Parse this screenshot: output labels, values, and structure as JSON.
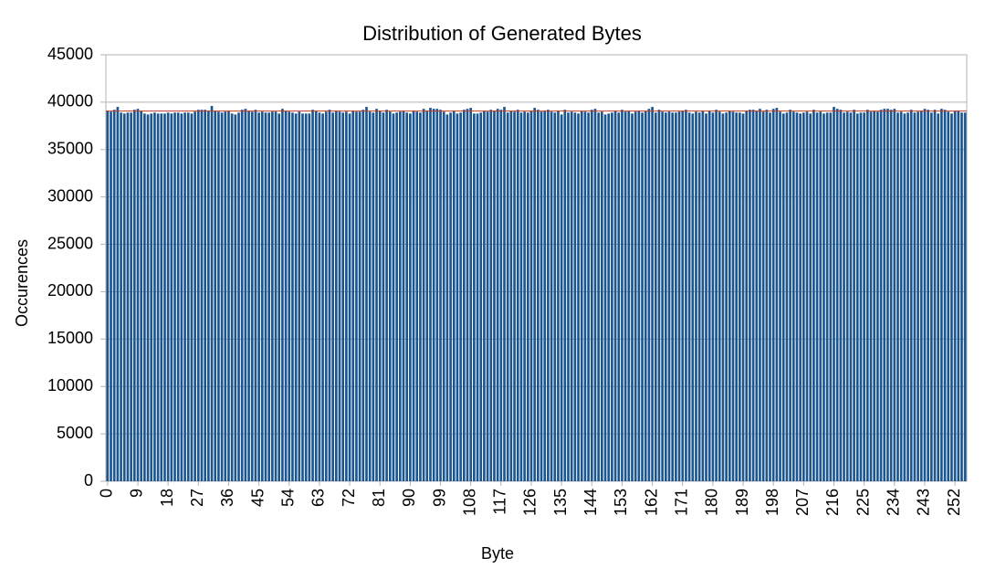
{
  "chart_data": {
    "type": "bar",
    "title": "Distribution of Generated Bytes",
    "x_label": "Byte",
    "y_label": "Occurences",
    "categories": [
      "0",
      null,
      null,
      null,
      null,
      null,
      null,
      null,
      null,
      "9",
      null,
      null,
      null,
      null,
      null,
      null,
      null,
      null,
      "18",
      null,
      null,
      null,
      null,
      null,
      null,
      null,
      null,
      "27",
      null,
      null,
      null,
      null,
      null,
      null,
      null,
      null,
      "36",
      null,
      null,
      null,
      null,
      null,
      null,
      null,
      null,
      "45",
      null,
      null,
      null,
      null,
      null,
      null,
      null,
      null,
      "54",
      null,
      null,
      null,
      null,
      null,
      null,
      null,
      null,
      "63",
      null,
      null,
      null,
      null,
      null,
      null,
      null,
      null,
      "72",
      null,
      null,
      null,
      null,
      null,
      null,
      null,
      null,
      "81",
      null,
      null,
      null,
      null,
      null,
      null,
      null,
      null,
      "90",
      null,
      null,
      null,
      null,
      null,
      null,
      null,
      null,
      "99",
      null,
      null,
      null,
      null,
      null,
      null,
      null,
      null,
      "108",
      null,
      null,
      null,
      null,
      null,
      null,
      null,
      null,
      "117",
      null,
      null,
      null,
      null,
      null,
      null,
      null,
      null,
      "126",
      null,
      null,
      null,
      null,
      null,
      null,
      null,
      null,
      "135",
      null,
      null,
      null,
      null,
      null,
      null,
      null,
      null,
      "144",
      null,
      null,
      null,
      null,
      null,
      null,
      null,
      null,
      "153",
      null,
      null,
      null,
      null,
      null,
      null,
      null,
      null,
      "162",
      null,
      null,
      null,
      null,
      null,
      null,
      null,
      null,
      "171",
      null,
      null,
      null,
      null,
      null,
      null,
      null,
      null,
      "180",
      null,
      null,
      null,
      null,
      null,
      null,
      null,
      null,
      "189",
      null,
      null,
      null,
      null,
      null,
      null,
      null,
      null,
      "198",
      null,
      null,
      null,
      null,
      null,
      null,
      null,
      null,
      "207",
      null,
      null,
      null,
      null,
      null,
      null,
      null,
      null,
      "216",
      null,
      null,
      null,
      null,
      null,
      null,
      null,
      null,
      "225",
      null,
      null,
      null,
      null,
      null,
      null,
      null,
      null,
      "234",
      null,
      null,
      null,
      null,
      null,
      null,
      null,
      null,
      "243",
      null,
      null,
      null,
      null,
      null,
      null,
      null,
      null,
      "252",
      null,
      null,
      null
    ],
    "values": [
      39100,
      39000,
      39200,
      39500,
      38900,
      38800,
      38900,
      38900,
      39200,
      39300,
      39100,
      38800,
      38700,
      38800,
      38900,
      38800,
      38800,
      38800,
      38900,
      38800,
      38900,
      38900,
      38800,
      38900,
      38900,
      38800,
      39000,
      39200,
      39200,
      39200,
      39100,
      39600,
      39100,
      39000,
      38900,
      39000,
      39100,
      38800,
      38700,
      38900,
      39200,
      39300,
      39100,
      39000,
      39200,
      38900,
      39000,
      38900,
      38900,
      39000,
      39000,
      38800,
      39300,
      39100,
      39000,
      38900,
      38800,
      39000,
      38800,
      38800,
      38800,
      39200,
      39100,
      38900,
      38800,
      39000,
      39200,
      38900,
      39100,
      39000,
      38900,
      39000,
      38800,
      39100,
      39000,
      39000,
      39200,
      39500,
      39000,
      38900,
      39300,
      39100,
      38900,
      39200,
      39000,
      38800,
      38900,
      39000,
      39100,
      38900,
      38800,
      39100,
      39000,
      38900,
      39300,
      39100,
      39400,
      39300,
      39300,
      39200,
      39000,
      38700,
      38900,
      39100,
      38800,
      38900,
      39200,
      39300,
      39400,
      38800,
      38800,
      38900,
      39100,
      39000,
      39200,
      39100,
      39300,
      39200,
      39500,
      38900,
      39100,
      39000,
      39200,
      38900,
      39000,
      38900,
      39100,
      39400,
      39200,
      39000,
      39100,
      39200,
      39000,
      38900,
      39100,
      38700,
      39200,
      38900,
      39000,
      38900,
      38800,
      39100,
      39000,
      38900,
      39200,
      39300,
      38900,
      39000,
      38700,
      38800,
      38900,
      39100,
      38900,
      39200,
      39000,
      39100,
      38800,
      39000,
      39100,
      38900,
      39100,
      39300,
      39500,
      38900,
      39200,
      39000,
      38900,
      39000,
      38900,
      38900,
      39000,
      39100,
      39200,
      38900,
      38800,
      39000,
      38900,
      39100,
      38800,
      39100,
      38900,
      39200,
      39000,
      38800,
      38900,
      39100,
      39000,
      38900,
      38900,
      38800,
      39100,
      39200,
      39200,
      39100,
      39300,
      39000,
      39200,
      38900,
      39300,
      39400,
      39000,
      38800,
      38900,
      39200,
      39000,
      38900,
      38800,
      38900,
      39000,
      38800,
      39200,
      38900,
      39000,
      38800,
      38900,
      38900,
      39500,
      39300,
      39200,
      38900,
      39000,
      38900,
      39200,
      38800,
      38900,
      38900,
      39200,
      39000,
      39100,
      39000,
      39200,
      39300,
      39300,
      39200,
      39300,
      38900,
      39000,
      38800,
      38900,
      39200,
      38900,
      39000,
      39100,
      39300,
      39200,
      38900,
      39200,
      38800,
      39300,
      39200,
      39000,
      38800,
      39100,
      39100,
      38900,
      38900
    ],
    "color": "#1b5691",
    "reference_line": 39063,
    "reference_color": "#c0392b",
    "ylim": [
      0,
      45000
    ],
    "yticks": [
      0,
      5000,
      10000,
      15000,
      20000,
      25000,
      30000,
      35000,
      40000,
      45000
    ],
    "grid": true
  }
}
